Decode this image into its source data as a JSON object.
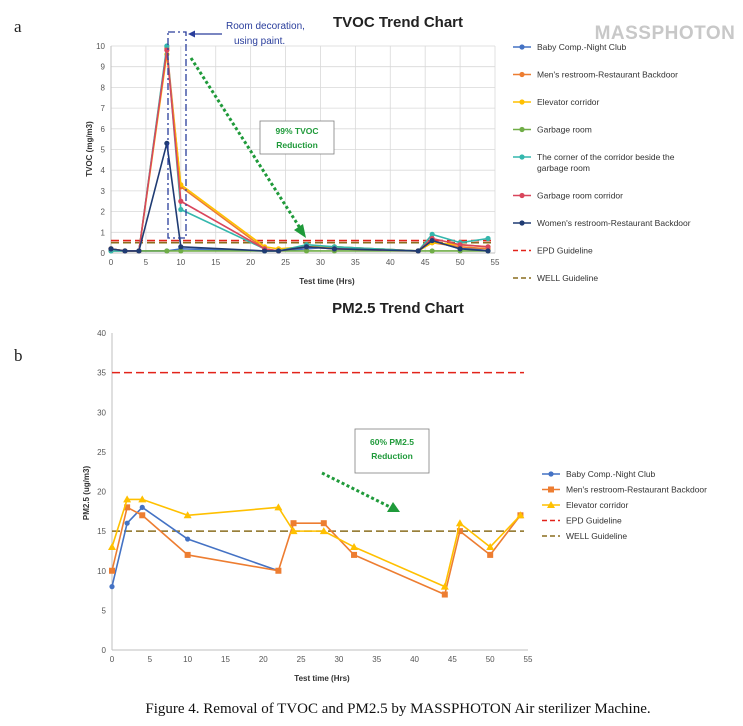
{
  "panel_labels": [
    "a",
    "b"
  ],
  "brand": "MASSPHOTON",
  "caption": "Figure 4. Removal of TVOC and PM2.5 by MASSPHOTON Air sterilizer Machine.",
  "colors": {
    "blue": "#4472c4",
    "orange": "#ed7d31",
    "yellow": "#ffc000",
    "green": "#70ad47",
    "teal": "#34b7ad",
    "crimson": "#d9465c",
    "navy": "#1f3b73",
    "epd": "#e2231a",
    "well": "#8a6d1e",
    "arrow_green": "#1f9a3a",
    "annot_blue": "#2a3e9c"
  },
  "chart_data": [
    {
      "type": "line",
      "title": "TVOC Trend Chart",
      "xlabel": "Test time (Hrs)",
      "ylabel": "TVOC (mg/m3)",
      "xlim": [
        0,
        55
      ],
      "ylim": [
        0,
        10
      ],
      "xticks": [
        "0",
        "5",
        "10",
        "15",
        "20",
        "25",
        "30",
        "35",
        "40",
        "45",
        "50",
        "55"
      ],
      "yticks": [
        "0",
        "1",
        "2",
        "3",
        "4",
        "5",
        "6",
        "7",
        "8",
        "9",
        "10"
      ],
      "grid": true,
      "legend_position": "right",
      "series": [
        {
          "name": "Baby Comp.-Night Club",
          "color": "#4472c4",
          "marker": "circle",
          "x": [
            0,
            2,
            4,
            8,
            10,
            22,
            24,
            28,
            32,
            44,
            46,
            50,
            54
          ],
          "y": [
            0.2,
            0.1,
            0.1,
            0.1,
            0.2,
            0.1,
            0.1,
            0.2,
            0.3,
            0.1,
            0.6,
            0.2,
            0.2
          ]
        },
        {
          "name": "Men's restroom-Restaurant Backdoor",
          "color": "#ed7d31",
          "marker": "circle",
          "x": [
            0,
            2,
            4,
            8,
            10,
            22,
            24,
            28,
            32,
            44,
            46,
            50,
            54
          ],
          "y": [
            0.2,
            0.1,
            0.1,
            9.9,
            3.2,
            0.2,
            0.1,
            0.3,
            0.2,
            0.1,
            0.5,
            0.3,
            0.2
          ]
        },
        {
          "name": "Elevator corridor",
          "color": "#ffc000",
          "marker": "circle",
          "x": [
            0,
            2,
            4,
            8,
            10,
            22,
            24,
            28,
            32,
            44,
            46,
            50,
            54
          ],
          "y": [
            0.2,
            0.1,
            0.1,
            9.6,
            3.3,
            0.3,
            0.2,
            0.3,
            0.3,
            0.1,
            0.5,
            0.4,
            0.3
          ]
        },
        {
          "name": "Garbage room",
          "color": "#70ad47",
          "marker": "circle",
          "x": [
            0,
            2,
            4,
            8,
            10,
            22,
            24,
            28,
            32,
            44,
            46,
            50,
            54
          ],
          "y": [
            0.1,
            0.1,
            0.1,
            0.1,
            0.1,
            0.1,
            0.1,
            0.1,
            0.1,
            0.1,
            0.1,
            0.1,
            0.1
          ]
        },
        {
          "name": "The corner of the corridor beside the garbage room",
          "color": "#34b7ad",
          "marker": "circle",
          "x": [
            0,
            2,
            4,
            8,
            10,
            22,
            24,
            28,
            32,
            44,
            46,
            50,
            54
          ],
          "y": [
            0.1,
            0.1,
            0.1,
            10.0,
            2.1,
            0.2,
            0.1,
            0.4,
            0.3,
            0.1,
            0.9,
            0.5,
            0.7
          ]
        },
        {
          "name": "Garbage room corridor",
          "color": "#d9465c",
          "marker": "circle",
          "x": [
            0,
            2,
            4,
            8,
            10,
            22,
            24,
            28,
            32,
            44,
            46,
            50,
            54
          ],
          "y": [
            0.2,
            0.1,
            0.1,
            9.8,
            2.5,
            0.2,
            0.1,
            0.3,
            0.2,
            0.1,
            0.7,
            0.4,
            0.3
          ]
        },
        {
          "name": "Women's restroom-Restaurant Backdoor",
          "color": "#1f3b73",
          "marker": "circle",
          "x": [
            0,
            2,
            4,
            8,
            10,
            22,
            24,
            28,
            32,
            44,
            46,
            50,
            54
          ],
          "y": [
            0.2,
            0.1,
            0.1,
            5.3,
            0.3,
            0.1,
            0.1,
            0.3,
            0.2,
            0.1,
            0.6,
            0.2,
            0.1
          ]
        }
      ],
      "guidelines": [
        {
          "name": "EPD Guideline",
          "y": 0.6,
          "color": "#e2231a",
          "style": "dashed"
        },
        {
          "name": "WELL Guideline",
          "y": 0.5,
          "color": "#8a6d1e",
          "style": "dashed"
        }
      ],
      "annotations": [
        {
          "text_lines": [
            "Room decoration,",
            "using paint."
          ],
          "color": "#2a3e9c"
        },
        {
          "text_lines": [
            "99% TVOC",
            "Reduction"
          ],
          "color": "#1f9a3a"
        }
      ]
    },
    {
      "type": "line",
      "title": "PM2.5 Trend Chart",
      "xlabel": "Test time (Hrs)",
      "ylabel": "PM2.5 (ug/m3)",
      "xlim": [
        0,
        55
      ],
      "ylim": [
        0,
        40
      ],
      "xticks": [
        "0",
        "5",
        "10",
        "15",
        "20",
        "25",
        "30",
        "35",
        "40",
        "45",
        "50",
        "55"
      ],
      "yticks": [
        "0",
        "5",
        "10",
        "15",
        "20",
        "25",
        "30",
        "35",
        "40"
      ],
      "grid": false,
      "legend_position": "right",
      "series": [
        {
          "name": "Baby Comp.-Night Club",
          "color": "#4472c4",
          "marker": "circle",
          "x": [
            0,
            2,
            4,
            10,
            22
          ],
          "y": [
            8,
            16,
            18,
            14,
            10
          ]
        },
        {
          "name": "Men's restroom-Restaurant Backdoor",
          "color": "#ed7d31",
          "marker": "square",
          "x": [
            0,
            2,
            4,
            10,
            22,
            24,
            28,
            32,
            44,
            46,
            50,
            54
          ],
          "y": [
            10,
            18,
            17,
            12,
            10,
            16,
            16,
            12,
            7,
            15,
            12,
            17
          ]
        },
        {
          "name": "Elevator corridor",
          "color": "#ffc000",
          "marker": "triangle",
          "x": [
            0,
            2,
            4,
            10,
            22,
            24,
            28,
            32,
            44,
            46,
            50,
            54
          ],
          "y": [
            13,
            19,
            19,
            17,
            18,
            15,
            15,
            13,
            8,
            16,
            13,
            17
          ]
        }
      ],
      "guidelines": [
        {
          "name": "EPD Guideline",
          "y": 35,
          "color": "#e2231a",
          "style": "dashed"
        },
        {
          "name": "WELL Guideline",
          "y": 15,
          "color": "#8a6d1e",
          "style": "dashed"
        }
      ],
      "annotations": [
        {
          "text_lines": [
            "60% PM2.5",
            "Reduction"
          ],
          "color": "#1f9a3a"
        }
      ]
    }
  ]
}
